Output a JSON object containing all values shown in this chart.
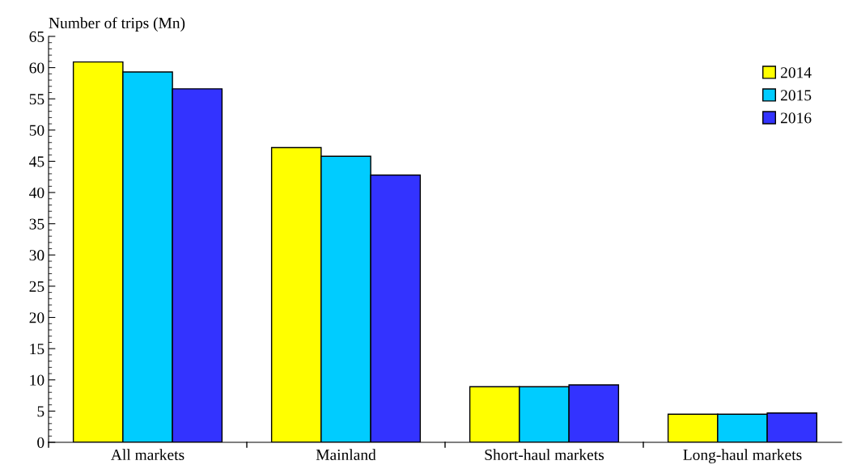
{
  "chart_data": {
    "type": "bar",
    "ylabel": "Number of trips (Mn)",
    "categories": [
      "All markets",
      "Mainland",
      "Short-haul markets",
      "Long-haul markets"
    ],
    "series": [
      {
        "name": "2014",
        "color": "#ffff00",
        "values": [
          60.9,
          47.2,
          8.9,
          4.5
        ]
      },
      {
        "name": "2015",
        "color": "#00ccff",
        "values": [
          59.3,
          45.8,
          8.9,
          4.5
        ]
      },
      {
        "name": "2016",
        "color": "#3333ff",
        "values": [
          56.6,
          42.8,
          9.2,
          4.7
        ]
      }
    ],
    "ylim": [
      0,
      65
    ],
    "yticks": [
      0,
      5,
      10,
      15,
      20,
      25,
      30,
      35,
      40,
      45,
      50,
      55,
      60,
      65
    ],
    "grid": false,
    "legend": "top right"
  }
}
